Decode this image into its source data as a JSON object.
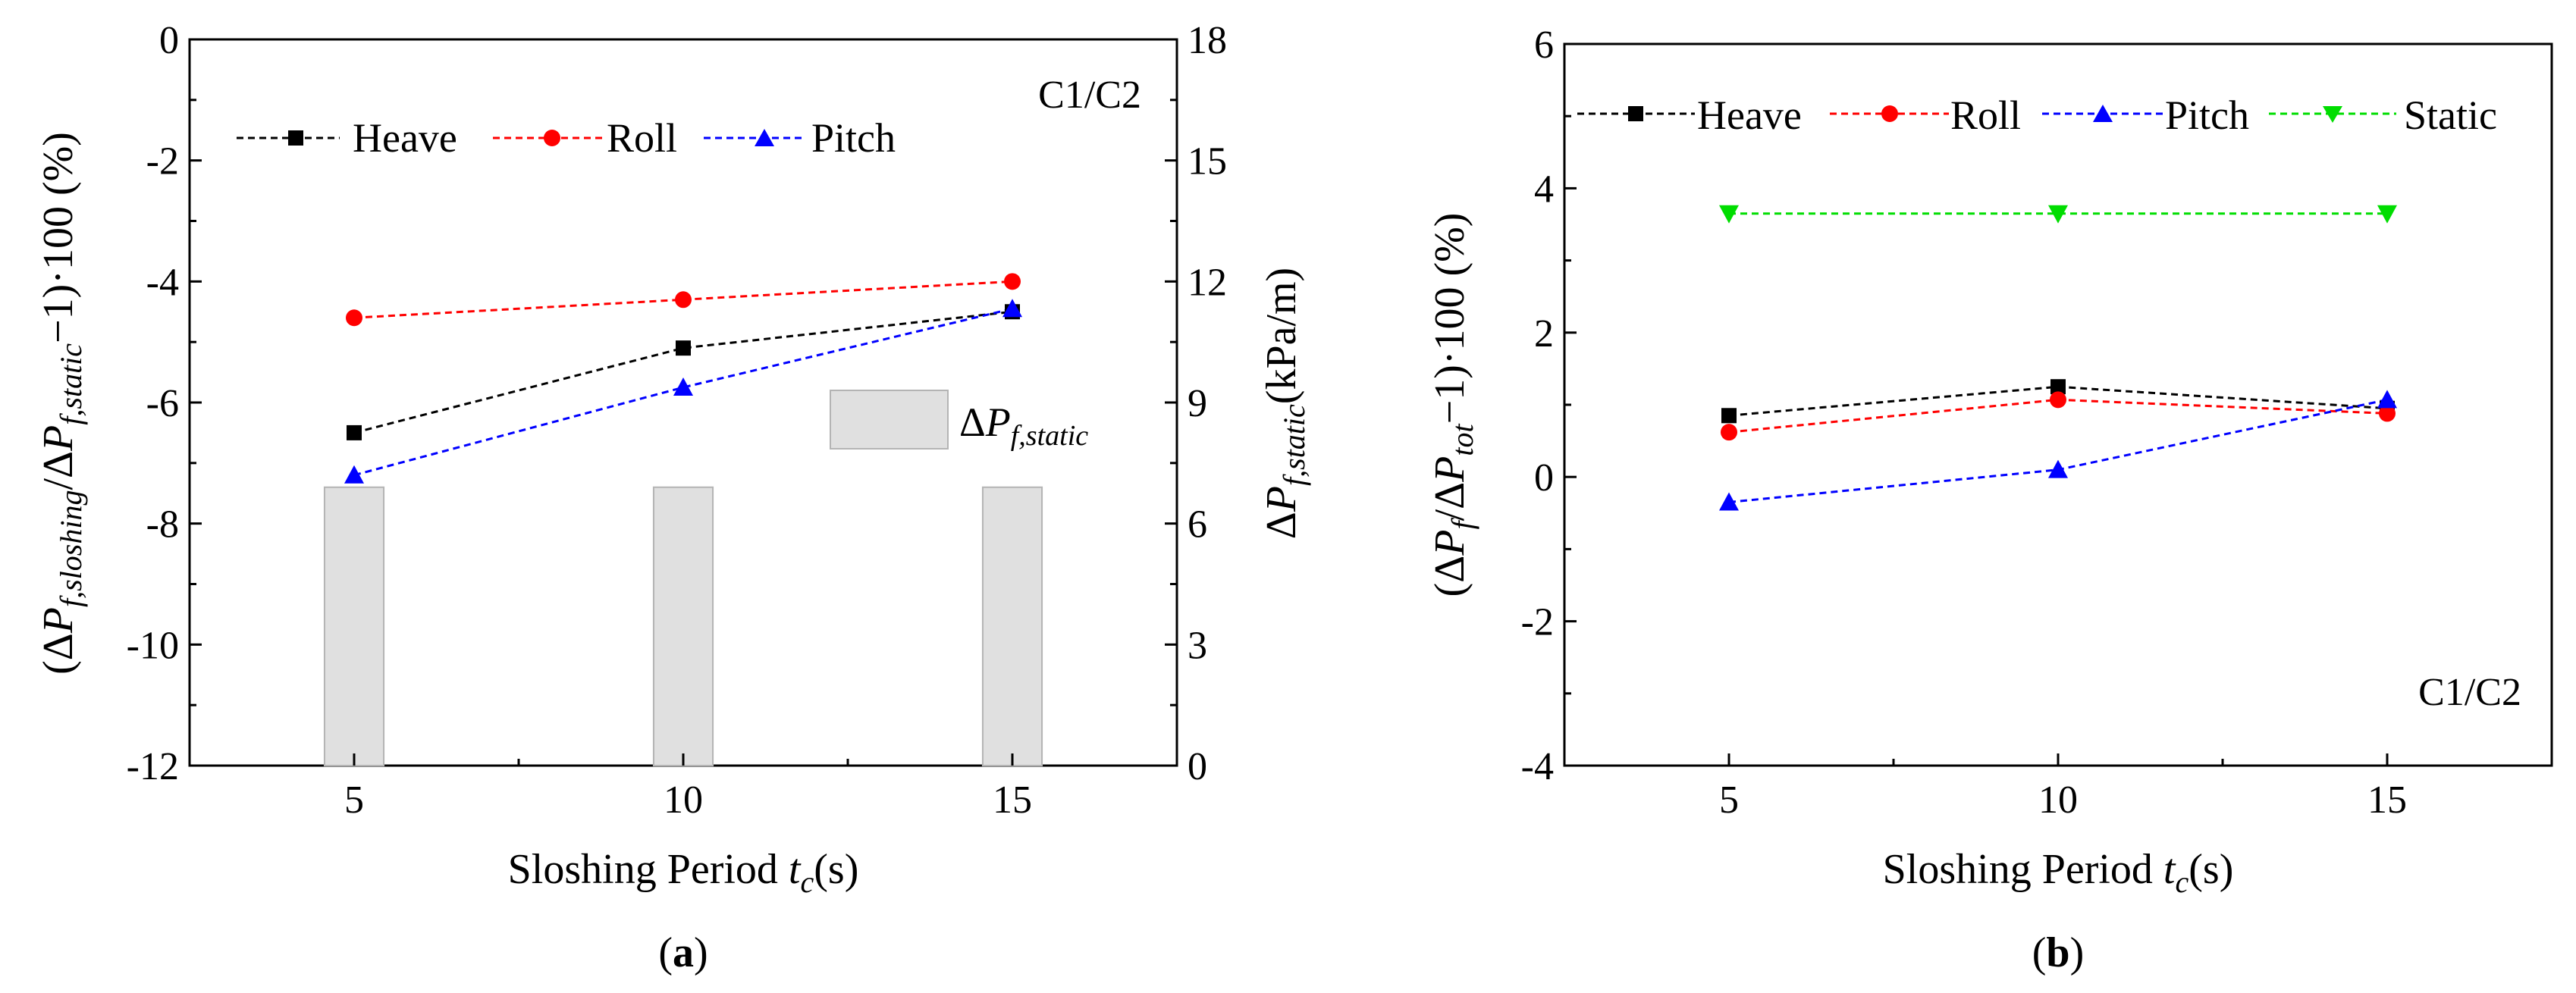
{
  "colors": {
    "heave": "#000000",
    "roll": "#ff0000",
    "pitch": "#0000ff",
    "static": "#00dd00",
    "bar_fill": "#e0e0e0",
    "bar_stroke": "#b4b4b4"
  },
  "panel_labels": {
    "a": "(a)",
    "b": "(b)"
  },
  "chart_data": [
    {
      "type": "line",
      "panel": "a",
      "annotation": "C1/C2",
      "xlabel": "Sloshing Period tc(s)",
      "ylabel": "(ΔPf,sloshing/ΔPf,static−1)·100 (%)",
      "y2label": "ΔPf,static(kPa/m)",
      "xlim": [
        2.5,
        17.5
      ],
      "ylim": [
        -12,
        0
      ],
      "y2lim": [
        0,
        18
      ],
      "x_ticks": [
        "5",
        "10",
        "15"
      ],
      "y_ticks": [
        "0",
        "-2",
        "-4",
        "-6",
        "-8",
        "-10",
        "-12"
      ],
      "y2_ticks": [
        "0",
        "3",
        "6",
        "9",
        "12",
        "15",
        "18"
      ],
      "x": [
        5,
        10,
        15
      ],
      "series": [
        {
          "name": "Heave",
          "marker": "square",
          "values": [
            -6.5,
            -5.1,
            -4.5
          ]
        },
        {
          "name": "Roll",
          "marker": "circle",
          "values": [
            -4.6,
            -4.3,
            -4.0
          ]
        },
        {
          "name": "Pitch",
          "marker": "triangle-up",
          "values": [
            -7.2,
            -5.75,
            -4.45
          ]
        }
      ],
      "bars": {
        "name": "ΔPf,static",
        "axis": "right",
        "values": [
          6.9,
          6.9,
          6.9
        ]
      }
    },
    {
      "type": "line",
      "panel": "b",
      "annotation": "C1/C2",
      "xlabel": "Sloshing Period tc(s)",
      "ylabel": "(ΔPf/ΔPtot−1)·100 (%)",
      "xlim": [
        2.5,
        17.5
      ],
      "ylim": [
        -4,
        6
      ],
      "x_ticks": [
        "5",
        "10",
        "15"
      ],
      "y_ticks": [
        "6",
        "4",
        "2",
        "0",
        "-2",
        "-4"
      ],
      "x": [
        5,
        10,
        15
      ],
      "series": [
        {
          "name": "Heave",
          "marker": "square",
          "values": [
            0.85,
            1.25,
            0.95
          ]
        },
        {
          "name": "Roll",
          "marker": "circle",
          "values": [
            0.62,
            1.07,
            0.88
          ]
        },
        {
          "name": "Pitch",
          "marker": "triangle-up",
          "values": [
            -0.35,
            0.1,
            1.07
          ]
        },
        {
          "name": "Static",
          "marker": "triangle-down",
          "values": [
            3.65,
            3.65,
            3.65
          ]
        }
      ]
    }
  ]
}
